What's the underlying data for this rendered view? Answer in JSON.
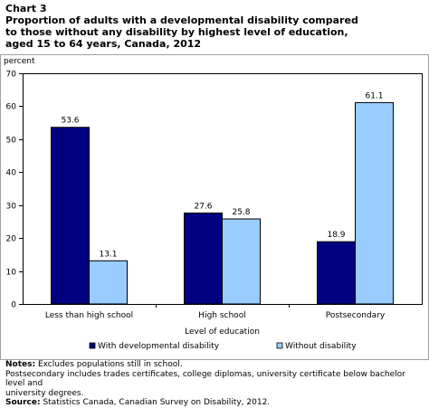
{
  "chart_label": "Chart 3",
  "title_lines": [
    "Proportion of adults with a developmental disability compared",
    "to those without any disability by highest level of education,",
    "aged 15 to 64 years, Canada, 2012"
  ],
  "colors": {
    "series_1": "#000080",
    "series_2": "#99ccff",
    "axis": "#000000",
    "frame": "#a0a0a0"
  },
  "chart_data": {
    "type": "bar",
    "title": "Proportion of adults with a developmental disability compared to those without any disability by highest level of education, aged 15 to 64 years, Canada, 2012",
    "ylabel": "percent",
    "xlabel": "Level of education",
    "ylim": [
      0,
      70
    ],
    "yticks": [
      0,
      10,
      20,
      30,
      40,
      50,
      60,
      70
    ],
    "grid": false,
    "legend_position": "bottom",
    "categories": [
      "Less than high school",
      "High school",
      "Postsecondary"
    ],
    "series": [
      {
        "name": "With developmental disability",
        "values": [
          53.6,
          27.6,
          18.9
        ],
        "labels": [
          "53.6",
          "27.6",
          "18.9"
        ]
      },
      {
        "name": "Without disability",
        "values": [
          13.1,
          25.8,
          61.1
        ],
        "labels": [
          "13.1",
          "25.8",
          "61.1"
        ]
      }
    ]
  },
  "notes": {
    "notes_label": "Notes:",
    "notes_line1": "Excludes populations still in school.",
    "notes_line2": "Postsecondary includes trades certificates, college diplomas, university certificate below  bachelor level and",
    "notes_line3": "university degrees.",
    "source_label": "Source:",
    "source_text": "Statistics Canada, Canadian Survey on Disability, 2012."
  }
}
